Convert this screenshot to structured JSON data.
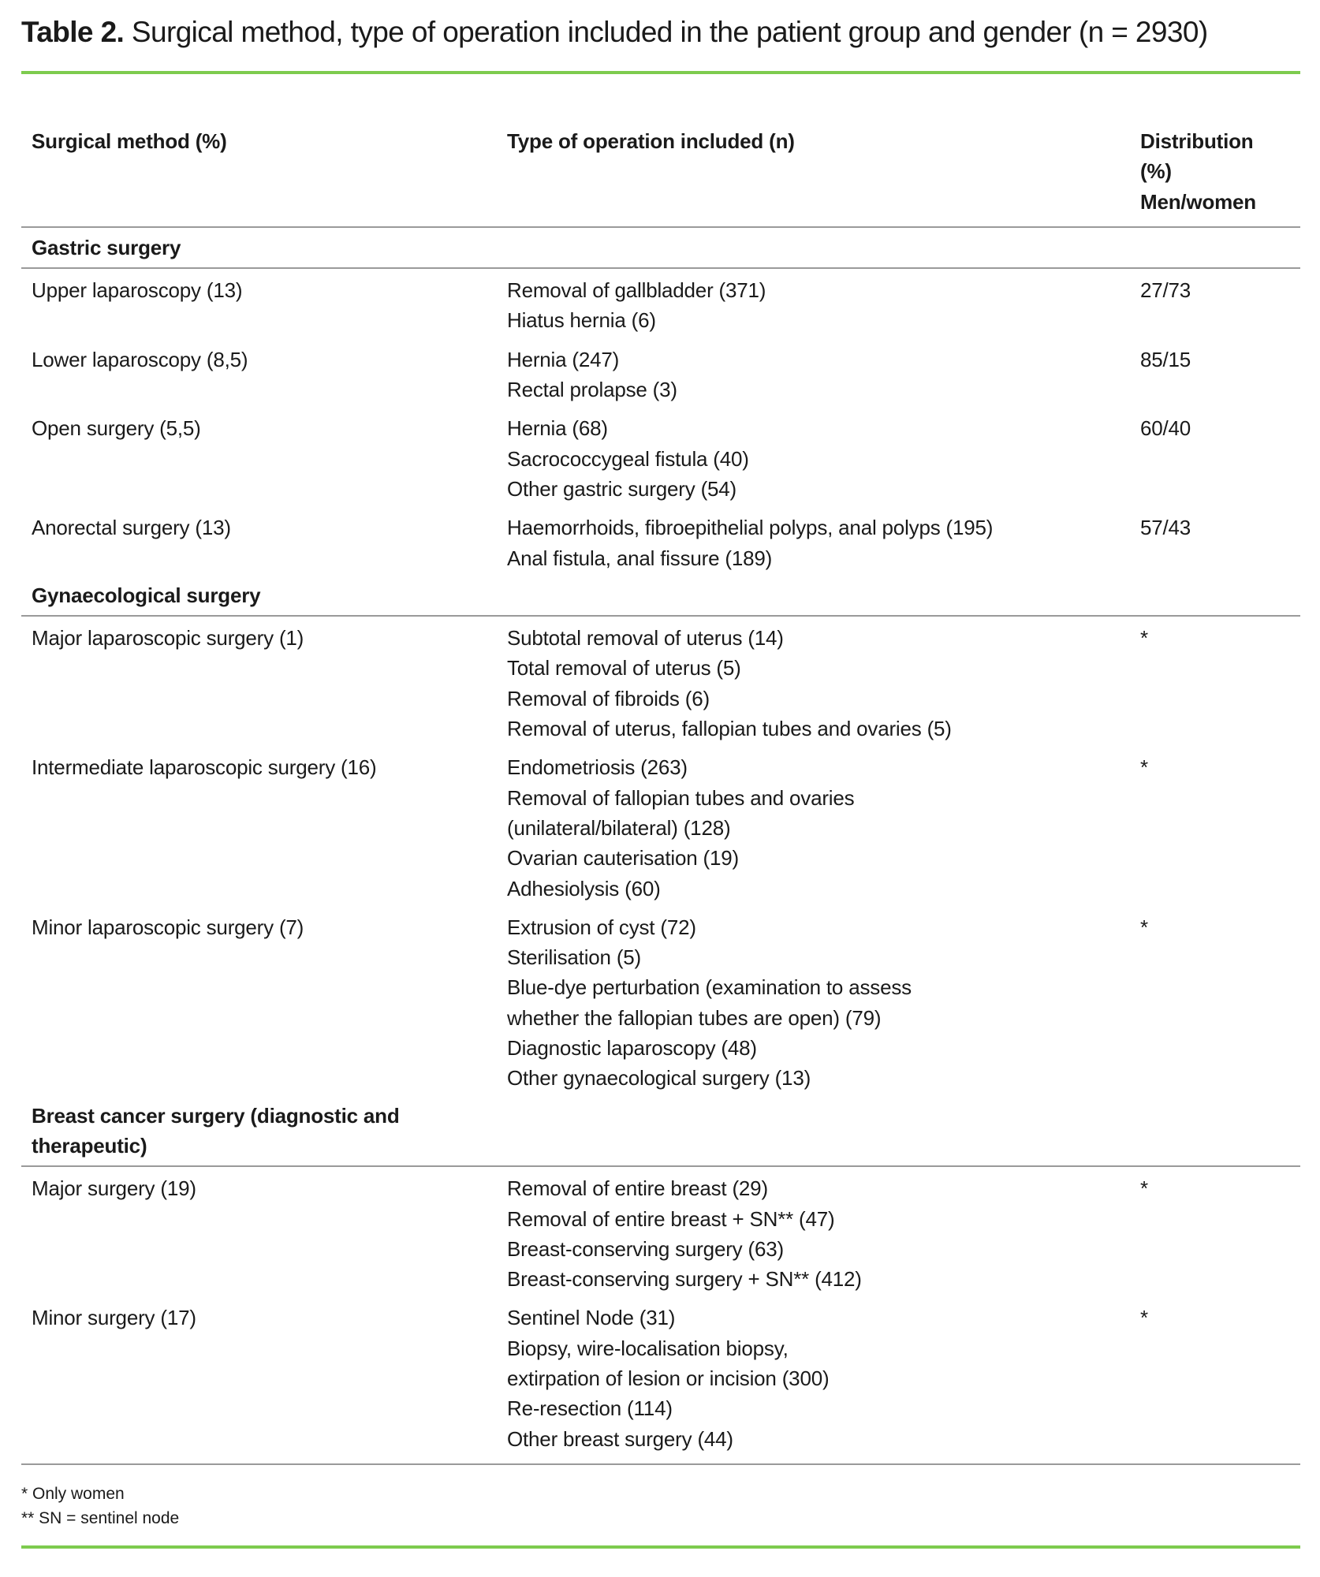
{
  "title": {
    "label": "Table 2.",
    "text": " Surgical method, type of operation included in the patient group and gender (n = 2930)"
  },
  "columns": [
    "Surgical method (%)",
    "Type of operation included (n)",
    [
      "Distribution",
      "(%)",
      "Men/women"
    ]
  ],
  "sections": [
    {
      "name": "Gastric surgery",
      "rows": [
        {
          "method": "Upper laparoscopy (13)",
          "ops": [
            "Removal of gallbladder (371)",
            "Hiatus hernia (6)"
          ],
          "dist": "27/73"
        },
        {
          "method": "Lower laparoscopy (8,5)",
          "ops": [
            "Hernia (247)",
            "Rectal prolapse (3)"
          ],
          "dist": "85/15"
        },
        {
          "method": "Open surgery (5,5)",
          "ops": [
            "Hernia (68)",
            "Sacrococcygeal fistula (40)",
            "Other gastric surgery (54)"
          ],
          "dist": "60/40"
        },
        {
          "method": "Anorectal surgery (13)",
          "ops": [
            "Haemorrhoids, fibroepithelial polyps, anal polyps (195)",
            "Anal fistula, anal fissure (189)"
          ],
          "dist": "57/43"
        }
      ]
    },
    {
      "name": "Gynaecological surgery",
      "rows": [
        {
          "method": "Major laparoscopic surgery (1)",
          "ops": [
            "Subtotal removal of uterus (14)",
            "Total removal of uterus (5)",
            "Removal of fibroids (6)",
            "Removal of uterus, fallopian tubes and ovaries (5)"
          ],
          "dist": "*"
        },
        {
          "method": "Intermediate laparoscopic surgery (16)",
          "ops": [
            "Endometriosis (263)",
            "Removal of fallopian tubes and ovaries",
            "(unilateral/bilateral) (128)",
            "Ovarian cauterisation (19)",
            "Adhesiolysis (60)"
          ],
          "dist": "*"
        },
        {
          "method": "Minor laparoscopic surgery (7)",
          "ops": [
            "Extrusion of cyst (72)",
            "Sterilisation (5)",
            "Blue-dye perturbation (examination to assess",
            "whether the fallopian tubes are open) (79)",
            "Diagnostic laparoscopy (48)",
            "Other gynaecological surgery (13)"
          ],
          "dist": "*"
        }
      ]
    },
    {
      "name": "Breast cancer surgery (diagnostic and therapeutic)",
      "rows": [
        {
          "method": "Major surgery (19)",
          "ops": [
            "Removal of entire breast (29)",
            "Removal of entire breast + SN** (47)",
            "Breast-conserving surgery (63)",
            "Breast-conserving surgery + SN** (412)"
          ],
          "dist": "*"
        },
        {
          "method": "Minor surgery (17)",
          "ops": [
            "Sentinel Node (31)",
            "Biopsy, wire-localisation biopsy,",
            "extirpation of lesion or incision (300)",
            "Re-resection (114)",
            "Other breast surgery (44)"
          ],
          "dist": "*"
        }
      ]
    }
  ],
  "footnotes": [
    " * Only women",
    "** SN = sentinel node"
  ],
  "colors": {
    "accent_rule": "#7dcb4e",
    "divider": "#9a9a9a"
  }
}
